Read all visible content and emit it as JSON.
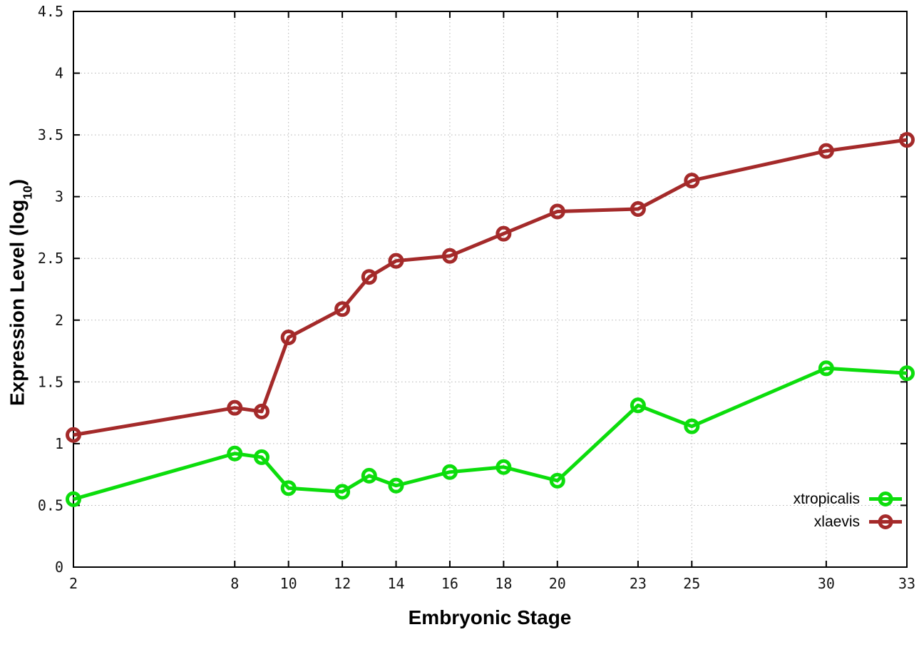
{
  "chart_data": {
    "type": "line",
    "title": "",
    "xlabel": "Embryonic Stage",
    "ylabel": "Expression Level (log10)",
    "ylabel_parts": {
      "prefix": "Expression Level (log",
      "subscript": "10",
      "suffix": ")"
    },
    "xlim": [
      2,
      33
    ],
    "ylim": [
      0,
      4.5
    ],
    "x_ticks": {
      "values": [
        2,
        8,
        10,
        12,
        14,
        16,
        18,
        20,
        23,
        25,
        30,
        33
      ],
      "labels": [
        "2",
        "8",
        "10",
        "12",
        "14",
        "16",
        "18",
        "20",
        "23",
        "25",
        "30",
        "33"
      ]
    },
    "y_ticks": {
      "values": [
        0,
        0.5,
        1,
        1.5,
        2,
        2.5,
        3,
        3.5,
        4,
        4.5
      ],
      "labels": [
        "0",
        "0.5",
        "1",
        "1.5",
        "2",
        "2.5",
        "3",
        "3.5",
        "4",
        "4.5"
      ]
    },
    "grid": true,
    "grid_style": "dotted",
    "grid_color": "#b4b4b4",
    "frame_color": "#000000",
    "background": "#ffffff",
    "marker": "open-circle",
    "legend_position": "bottom-right",
    "x": [
      2,
      8,
      9,
      10,
      12,
      13,
      14,
      16,
      18,
      20,
      23,
      25,
      30,
      33
    ],
    "series": [
      {
        "name": "xtropicalis",
        "color": "#0cdd0c",
        "values": [
          0.55,
          0.92,
          0.89,
          0.64,
          0.61,
          0.74,
          0.66,
          0.77,
          0.81,
          0.7,
          1.31,
          1.14,
          1.61,
          1.57
        ]
      },
      {
        "name": "xlaevis",
        "color": "#a42a2a",
        "values": [
          1.07,
          1.29,
          1.26,
          1.86,
          2.09,
          2.35,
          2.48,
          2.52,
          2.7,
          2.88,
          2.9,
          3.13,
          3.37,
          3.46
        ]
      }
    ]
  }
}
